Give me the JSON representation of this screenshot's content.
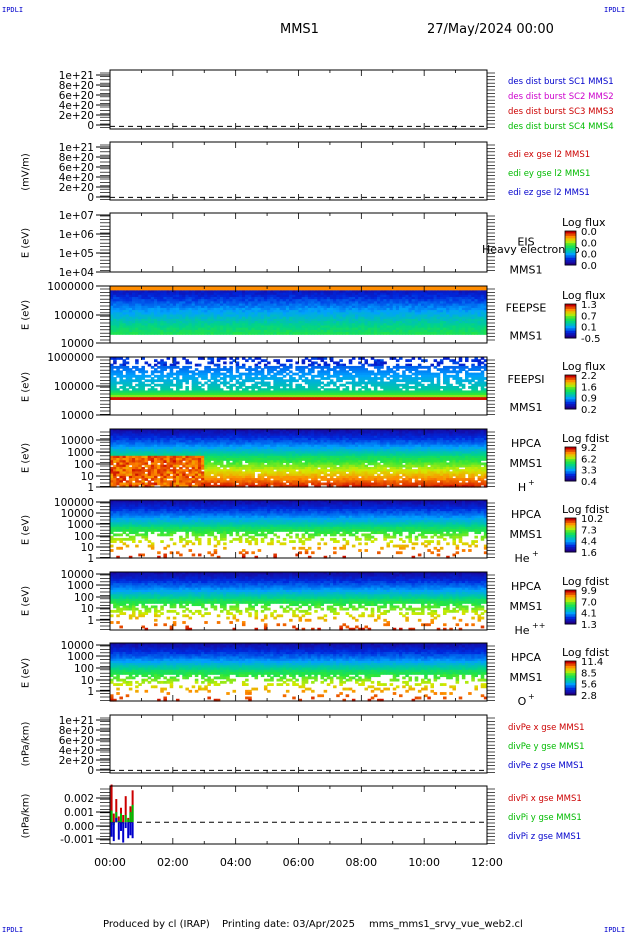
{
  "corner_label": "IPDLI",
  "header": {
    "mission": "MMS1",
    "datetime": "27/May/2024 00:00"
  },
  "footer": {
    "produced_by": "Produced by cl (IRAP)",
    "printing_date": "Printing date: 03/Apr/2025",
    "filename": "mms_mms1_srvy_vue_web2.cl"
  },
  "chart_data": [
    {
      "type": "line",
      "panel": "dist",
      "ylabel": "",
      "ytick_labels": [
        "1e+21",
        "8e+20",
        "6e+20",
        "4e+20",
        "2e+20",
        "0"
      ],
      "y_ticks": [
        1e+21,
        8e+20,
        6e+20,
        4e+20,
        2e+20,
        0
      ],
      "ylim": [
        -5e+19,
        1.05e+21
      ],
      "reference_line": 0,
      "series": [
        {
          "name": "des dist burst SC1 MMS1",
          "color": "#0000cc",
          "x": [],
          "y": []
        },
        {
          "name": "des dist burst SC2 MMS2",
          "color": "#cc00cc",
          "x": [],
          "y": []
        },
        {
          "name": "des dist burst SC3 MMS3",
          "color": "#cc0000",
          "x": [],
          "y": []
        },
        {
          "name": "des dist burst SC4 MMS4",
          "color": "#00bb00",
          "x": [],
          "y": []
        }
      ]
    },
    {
      "type": "line",
      "panel": "edi",
      "ylabel": "(mV/m)",
      "ytick_labels": [
        "1e+21",
        "8e+20",
        "6e+20",
        "4e+20",
        "2e+20",
        "0"
      ],
      "y_ticks": [
        1e+21,
        8e+20,
        6e+20,
        4e+20,
        2e+20,
        0
      ],
      "ylim": [
        -5e+19,
        1.05e+21
      ],
      "reference_line": 0,
      "series": [
        {
          "name": "edi ex gse l2 MMS1",
          "color": "#cc0000",
          "x": [],
          "y": []
        },
        {
          "name": "edi ey gse l2 MMS1",
          "color": "#00bb00",
          "x": [],
          "y": []
        },
        {
          "name": "edi ez gse l2 MMS1",
          "color": "#0000cc",
          "x": [],
          "y": []
        }
      ]
    },
    {
      "type": "heatmap",
      "panel": "eis",
      "ylabel": "E (eV)",
      "ytick_labels": [
        "1e+07",
        "1e+06",
        "1e+05",
        "1e+04"
      ],
      "ylim": [
        10000,
        10000000
      ],
      "y_scale": "log",
      "instrument": [
        "EIS",
        "MMS1"
      ],
      "overlay_text": "Heavy electron to",
      "colorbar_title": "Log flux",
      "colorbar_labels": [
        "0.0",
        "0.0",
        "0.0",
        "0.0"
      ],
      "coverage": "none"
    },
    {
      "type": "heatmap",
      "panel": "feepse",
      "ylabel": "E (eV)",
      "ytick_labels": [
        "1000000",
        "100000",
        "10000"
      ],
      "ylim": [
        10000,
        1000000
      ],
      "y_scale": "log",
      "instrument": [
        "FEEPSE",
        "MMS1"
      ],
      "colorbar_title": "Log flux",
      "colorbar_labels": [
        "1.3",
        "0.7",
        "0.1",
        "-0.5"
      ],
      "coverage": [
        0,
        12
      ]
    },
    {
      "type": "heatmap",
      "panel": "feepsi",
      "ylabel": "E (eV)",
      "ytick_labels": [
        "1000000",
        "100000",
        "10000"
      ],
      "ylim": [
        10000,
        1000000
      ],
      "y_scale": "log",
      "instrument": [
        "FEEPSI",
        "MMS1"
      ],
      "colorbar_title": "Log flux",
      "colorbar_labels": [
        "2.2",
        "1.6",
        "0.9",
        "0.2"
      ],
      "coverage": [
        0,
        12
      ]
    },
    {
      "type": "heatmap",
      "panel": "hpca-h",
      "ylabel": "E (eV)",
      "ytick_labels": [
        "10000",
        "1000",
        "100",
        "10",
        "1"
      ],
      "ylim": [
        1,
        40000
      ],
      "y_scale": "log",
      "instrument": [
        "HPCA",
        "MMS1"
      ],
      "species": "H",
      "charge": "+",
      "colorbar_title": "Log fdist",
      "colorbar_labels": [
        "9.2",
        "6.2",
        "3.3",
        "0.4"
      ],
      "coverage": [
        0,
        12
      ]
    },
    {
      "type": "heatmap",
      "panel": "hpca-he",
      "ylabel": "E (eV)",
      "ytick_labels": [
        "100000",
        "10000",
        "1000",
        "100",
        "10",
        "1"
      ],
      "ylim": [
        1,
        100000
      ],
      "y_scale": "log",
      "instrument": [
        "HPCA",
        "MMS1"
      ],
      "species": "He",
      "charge": "+",
      "colorbar_title": "Log fdist",
      "colorbar_labels": [
        "10.2",
        "7.3",
        "4.4",
        "1.6"
      ],
      "coverage": [
        0,
        12
      ]
    },
    {
      "type": "heatmap",
      "panel": "hpca-he2",
      "ylabel": "E (eV)",
      "ytick_labels": [
        "10000",
        "1000",
        "100",
        "10",
        "1"
      ],
      "ylim": [
        1,
        40000
      ],
      "y_scale": "log",
      "instrument": [
        "HPCA",
        "MMS1"
      ],
      "species": "He",
      "charge": "++",
      "colorbar_title": "Log fdist",
      "colorbar_labels": [
        "9.9",
        "7.0",
        "4.1",
        "1.3"
      ],
      "coverage": [
        0,
        12
      ]
    },
    {
      "type": "heatmap",
      "panel": "hpca-o",
      "ylabel": "E (eV)",
      "ytick_labels": [
        "10000",
        "1000",
        "100",
        "10",
        "1"
      ],
      "ylim": [
        1,
        40000
      ],
      "y_scale": "log",
      "instrument": [
        "HPCA",
        "MMS1"
      ],
      "species": "O",
      "charge": "+",
      "colorbar_title": "Log fdist",
      "colorbar_labels": [
        "11.4",
        "8.5",
        "5.6",
        "2.8"
      ],
      "coverage": [
        0,
        12
      ]
    },
    {
      "type": "line",
      "panel": "divpe",
      "ylabel": "(nPa/km)",
      "ytick_labels": [
        "1e+21",
        "8e+20",
        "6e+20",
        "4e+20",
        "2e+20",
        "0"
      ],
      "y_ticks": [
        1e+21,
        8e+20,
        6e+20,
        4e+20,
        2e+20,
        0
      ],
      "ylim": [
        -5e+19,
        1.05e+21
      ],
      "reference_line": 0,
      "series": [
        {
          "name": "divPe x gse MMS1",
          "color": "#cc0000",
          "x": [],
          "y": []
        },
        {
          "name": "divPe y gse MMS1",
          "color": "#00bb00",
          "x": [],
          "y": []
        },
        {
          "name": "divPe z gse MMS1",
          "color": "#0000cc",
          "x": [],
          "y": []
        }
      ]
    },
    {
      "type": "line",
      "panel": "divpi",
      "ylabel": "(nPa/km)",
      "ytick_labels": [
        "0.002",
        "0.001",
        "0.000",
        "-0.001"
      ],
      "y_ticks": [
        0.002,
        0.001,
        0.0,
        -0.001
      ],
      "ylim": [
        -0.0015,
        0.0025
      ],
      "reference_line": 0,
      "series": [
        {
          "name": "divPi x gse MMS1",
          "color": "#cc0000",
          "x": [
            0.05,
            0.12,
            0.2,
            0.28,
            0.35,
            0.42,
            0.5,
            0.58,
            0.65,
            0.72
          ],
          "y": [
            0.0026,
            0.0006,
            0.0016,
            0.0004,
            0.001,
            0.0005,
            0.0018,
            0.0003,
            0.0011,
            0.0022
          ]
        },
        {
          "name": "divPi y gse MMS1",
          "color": "#00bb00",
          "x": [
            0.05,
            0.12,
            0.2,
            0.28,
            0.35,
            0.42,
            0.5,
            0.58,
            0.65,
            0.72
          ],
          "y": [
            0.0008,
            -0.0002,
            0.0007,
            0.0001,
            0.0006,
            -0.0001,
            0.0005,
            0.0002,
            0.0007,
            0.0012
          ]
        },
        {
          "name": "divPi z gse MMS1",
          "color": "#0000cc",
          "x": [
            0.05,
            0.12,
            0.2,
            0.28,
            0.35,
            0.42,
            0.5,
            0.58,
            0.65,
            0.72
          ],
          "y": [
            -0.001,
            -0.0013,
            0.0003,
            -0.0012,
            -0.0006,
            -0.0014,
            -0.0004,
            -0.0011,
            -0.0009,
            -0.0011
          ]
        }
      ]
    }
  ],
  "time_axis": {
    "labels": [
      "00:00",
      "02:00",
      "04:00",
      "06:00",
      "08:00",
      "10:00",
      "12:00"
    ],
    "range_hours": [
      0,
      12
    ]
  }
}
